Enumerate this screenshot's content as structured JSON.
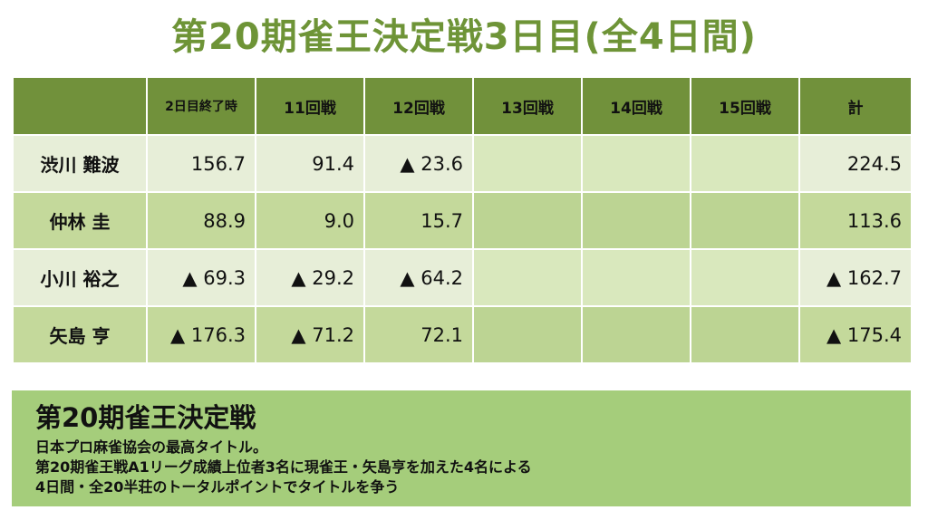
{
  "title": "第20期雀王決定戦3日目(全4日間)",
  "table": {
    "columns": [
      "",
      "2日目終了時",
      "11回戦",
      "12回戦",
      "13回戦",
      "14回戦",
      "15回戦",
      "計"
    ],
    "rows": [
      {
        "name": "渋川 難波",
        "cells": [
          "156.7",
          "91.4",
          "▲ 23.6",
          "",
          "",
          "",
          "224.5"
        ]
      },
      {
        "name": "仲林 圭",
        "cells": [
          "88.9",
          "9.0",
          "15.7",
          "",
          "",
          "",
          "113.6"
        ]
      },
      {
        "name": "小川 裕之",
        "cells": [
          "▲ 69.3",
          "▲ 29.2",
          "▲ 64.2",
          "",
          "",
          "",
          "▲ 162.7"
        ]
      },
      {
        "name": "矢島 亨",
        "cells": [
          "▲ 176.3",
          "▲ 71.2",
          "72.1",
          "",
          "",
          "",
          "▲ 175.4"
        ]
      }
    ]
  },
  "info": {
    "title": "第20期雀王決定戦",
    "lines": [
      "日本プロ麻雀協会の最高タイトル。",
      "第20期雀王戦A1リーグ成績上位者3名に現雀王・矢島亨を加えた4名による",
      "4日間・全20半荘のトータルポイントでタイトルを争う"
    ]
  }
}
